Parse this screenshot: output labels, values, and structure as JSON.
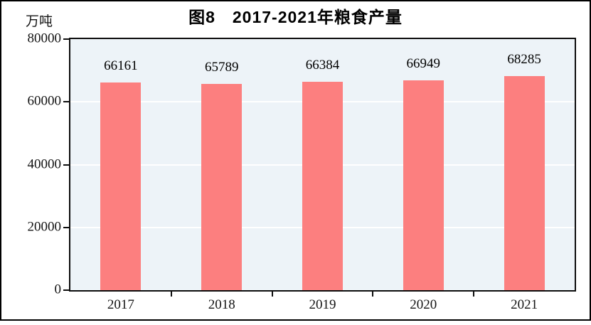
{
  "figure": {
    "title": "图8　2017-2021年粮食产量",
    "unit_label": "万吨"
  },
  "colors": {
    "bar": "#fc7f7f",
    "plot_bg": "#edf3f8",
    "gridline": "#ffffff",
    "axis": "#0d0d0d",
    "frame": "#000000",
    "text": "#141414"
  },
  "chart_data": {
    "type": "bar",
    "title": "图8　2017-2021年粮食产量",
    "categories": [
      "2017",
      "2018",
      "2019",
      "2020",
      "2021"
    ],
    "values": [
      66161,
      65789,
      66384,
      66949,
      68285
    ],
    "xlabel": "",
    "ylabel": "万吨",
    "ylim": [
      0,
      80000
    ],
    "yticks": [
      0,
      20000,
      40000,
      60000,
      80000
    ],
    "grid": true,
    "gridline_orientation": "horizontal",
    "data_labels": true,
    "legend": "none"
  }
}
